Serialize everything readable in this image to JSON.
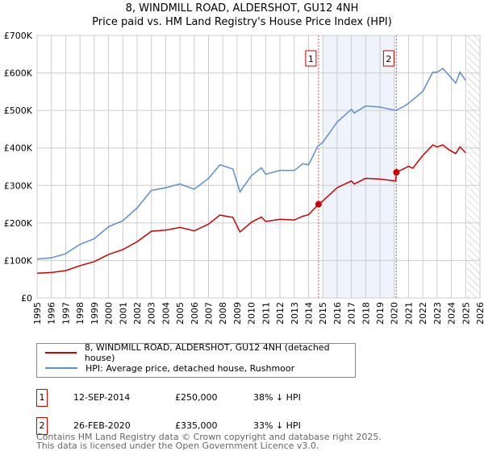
{
  "title": "8, WINDMILL ROAD, ALDERSHOT, GU12 4NH",
  "subtitle": "Price paid vs. HM Land Registry's House Price Index (HPI)",
  "chart_data": {
    "type": "line",
    "title": "8, WINDMILL ROAD, ALDERSHOT, GU12 4NH",
    "subtitle": "Price paid vs. HM Land Registry's House Price Index (HPI)",
    "xlim": [
      1995,
      2026
    ],
    "ylim": [
      0,
      700000
    ],
    "x_ticks": [
      "1995",
      "1996",
      "1997",
      "1998",
      "1999",
      "2000",
      "2001",
      "2002",
      "2003",
      "2004",
      "2005",
      "2006",
      "2007",
      "2008",
      "2009",
      "2010",
      "2011",
      "2012",
      "2013",
      "2014",
      "2015",
      "2016",
      "2017",
      "2018",
      "2019",
      "2020",
      "2021",
      "2022",
      "2023",
      "2024",
      "2025",
      "2026"
    ],
    "y_ticks": [
      {
        "v": 0,
        "label": "£0"
      },
      {
        "v": 100000,
        "label": "£100K"
      },
      {
        "v": 200000,
        "label": "£200K"
      },
      {
        "v": 300000,
        "label": "£300K"
      },
      {
        "v": 400000,
        "label": "£400K"
      },
      {
        "v": 500000,
        "label": "£500K"
      },
      {
        "v": 600000,
        "label": "£600K"
      },
      {
        "v": 700000,
        "label": "£700K"
      }
    ],
    "grid": true,
    "series": [
      {
        "name": "8, WINDMILL ROAD, ALDERSHOT, GU12 4NH (detached house)",
        "color": "#cc0000",
        "x": [
          1995,
          1996,
          1997,
          1998,
          1999,
          2000,
          2001,
          2002,
          2003,
          2004,
          2005,
          2006,
          2007,
          2007.8,
          2008.7,
          2009.2,
          2010,
          2010.7,
          2011,
          2012,
          2013,
          2013.6,
          2014,
          2014.7,
          2015,
          2016,
          2017,
          2017.2,
          2018,
          2019,
          2020.1,
          2020.15,
          2021,
          2021.3,
          2022,
          2022.7,
          2023,
          2023.4,
          2023.8,
          2024.3,
          2024.6,
          2025
        ],
        "y": [
          66000,
          68000,
          73000,
          86000,
          97000,
          116000,
          129000,
          150000,
          178000,
          181000,
          188000,
          179000,
          197000,
          221000,
          215000,
          176000,
          202000,
          216000,
          204000,
          210000,
          208000,
          218000,
          222000,
          250000,
          259000,
          294000,
          312000,
          304000,
          319000,
          317000,
          312000,
          335000,
          351000,
          346000,
          380000,
          408000,
          403000,
          408000,
          396000,
          385000,
          403000,
          387000
        ]
      },
      {
        "name": "HPI: Average price, detached house, Rushmoor",
        "color": "#5b8fd4",
        "x": [
          1995,
          1996,
          1997,
          1998,
          1999,
          2000,
          2001,
          2002,
          2003,
          2004,
          2005,
          2006,
          2007,
          2007.8,
          2008.7,
          2009.2,
          2010,
          2010.7,
          2011,
          2012,
          2013,
          2013.6,
          2014,
          2014.65,
          2015,
          2016,
          2017,
          2017.2,
          2018,
          2019,
          2020.1,
          2020.7,
          2021,
          2022,
          2022.7,
          2023,
          2023.4,
          2023.8,
          2024.3,
          2024.6,
          2025
        ],
        "y": [
          104000,
          107000,
          118000,
          143000,
          158000,
          190000,
          206000,
          240000,
          287000,
          294000,
          304000,
          290000,
          319000,
          355000,
          344000,
          283000,
          326000,
          347000,
          330000,
          340000,
          340000,
          358000,
          355000,
          405000,
          415000,
          469000,
          503000,
          493000,
          512000,
          509000,
          500000,
          511000,
          519000,
          551000,
          602000,
          602000,
          612000,
          595000,
          573000,
          602000,
          580000
        ]
      }
    ],
    "annotations": [
      {
        "label": "1",
        "x": 2014.7,
        "y": 250000
      },
      {
        "label": "2",
        "x": 2020.15,
        "y": 335000
      }
    ],
    "shaded_range": [
      2015,
      2020.15
    ],
    "hatched_range": [
      2025.1,
      2026
    ]
  },
  "legend": {
    "items": [
      {
        "label": "8, WINDMILL ROAD, ALDERSHOT, GU12 4NH (detached house)",
        "color": "#cc0000"
      },
      {
        "label": "HPI: Average price, detached house, Rushmoor",
        "color": "#5b8fd4"
      }
    ]
  },
  "transactions": [
    {
      "num": "1",
      "date": "12-SEP-2014",
      "price": "£250,000",
      "hpi": "38% ↓ HPI"
    },
    {
      "num": "2",
      "date": "26-FEB-2020",
      "price": "£335,000",
      "hpi": "33% ↓ HPI"
    }
  ],
  "footer": [
    "Contains HM Land Registry data © Crown copyright and database right 2025.",
    "This data is licensed under the Open Government Licence v3.0."
  ]
}
